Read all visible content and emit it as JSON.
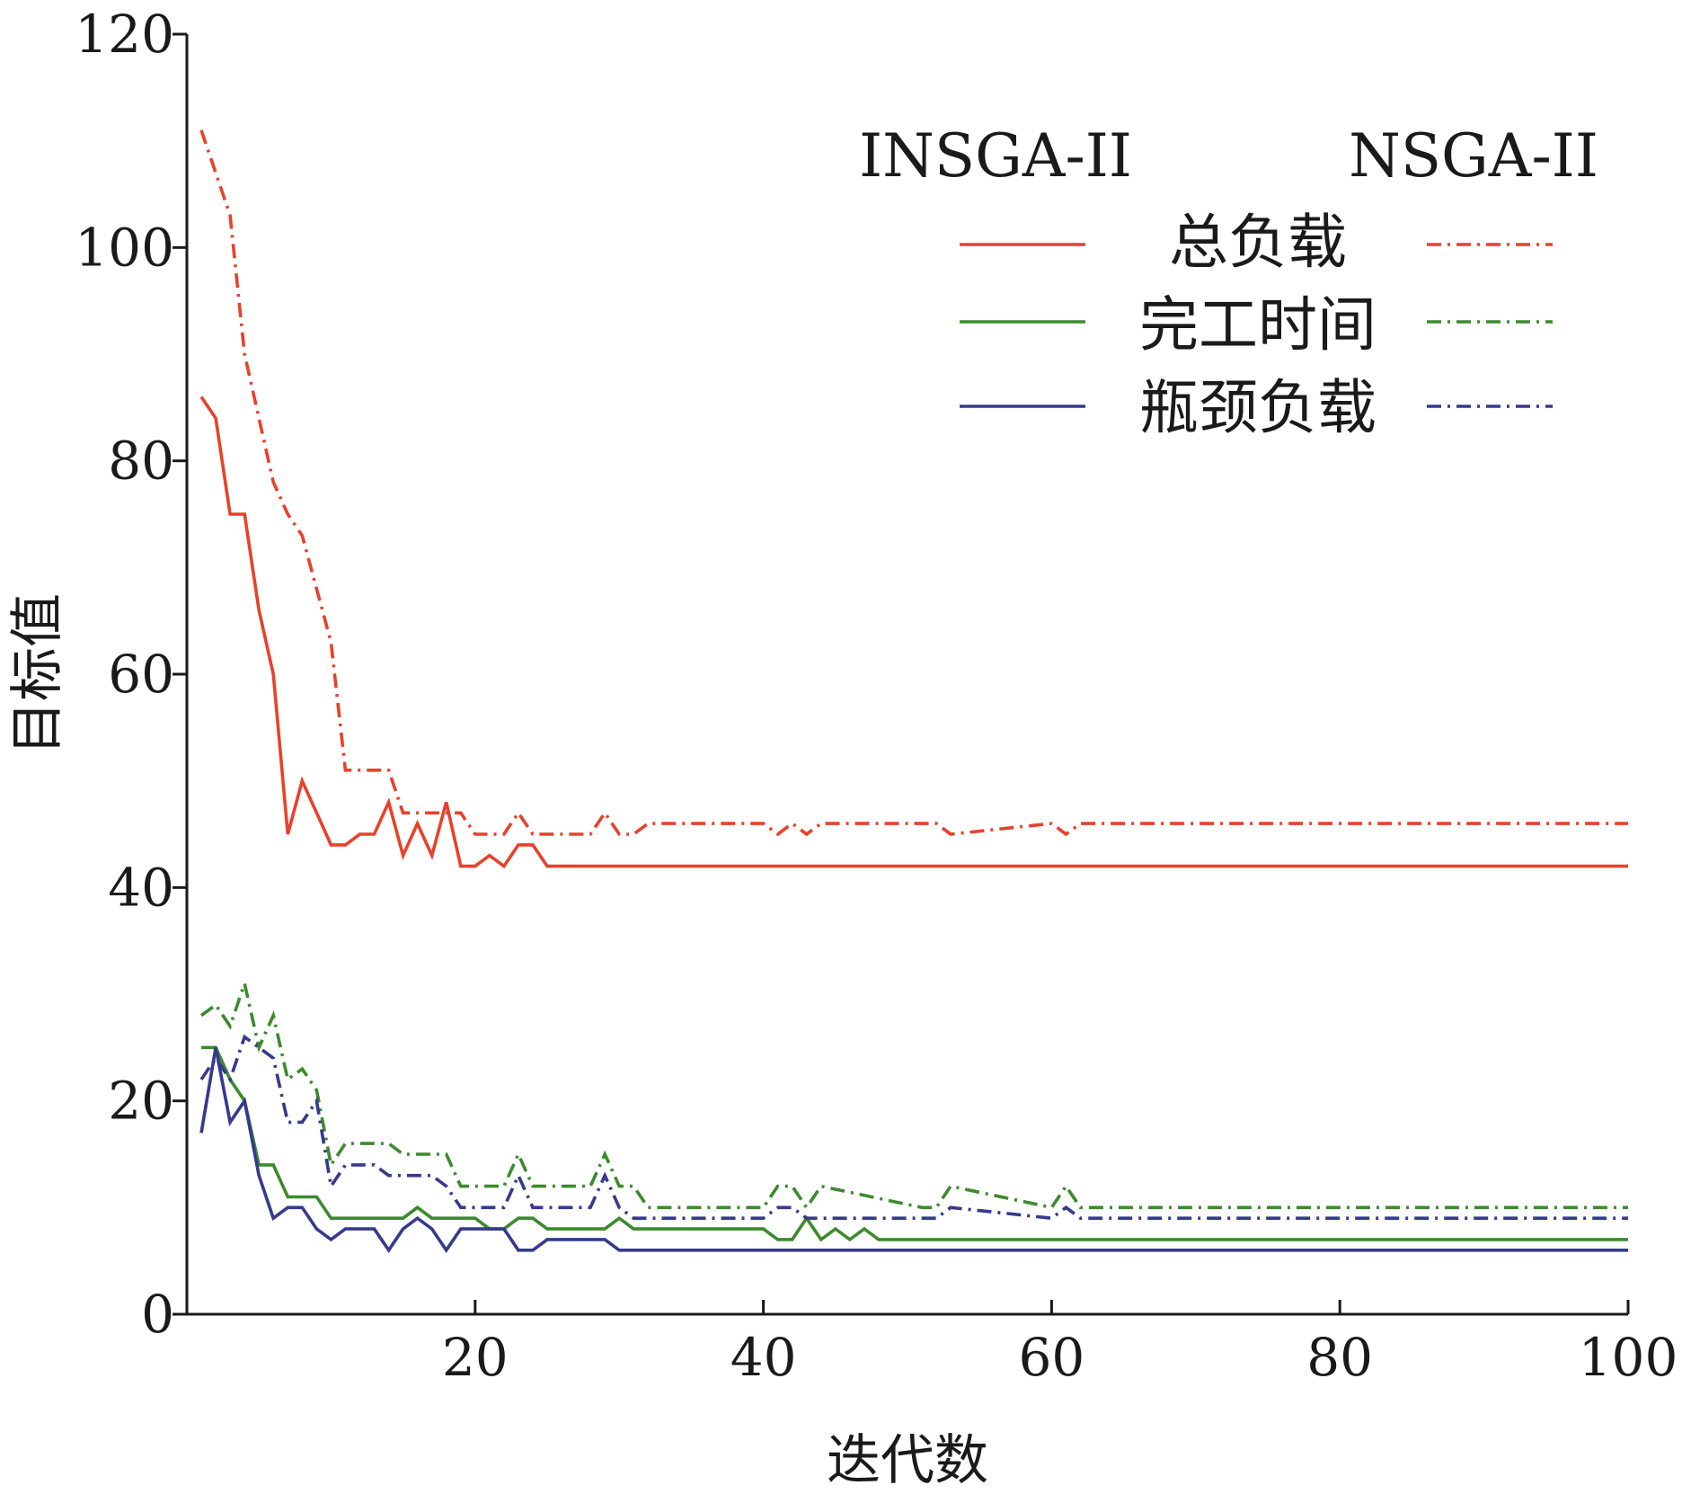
{
  "chart_data": {
    "type": "line",
    "xlabel": "迭代数",
    "ylabel": "目标值",
    "xlim": [
      0,
      100
    ],
    "ylim": [
      0,
      120
    ],
    "xticks": [
      20,
      40,
      60,
      80,
      100
    ],
    "yticks": [
      0,
      20,
      40,
      60,
      80,
      100,
      120
    ],
    "grid": false,
    "legend": {
      "placement": "top-right",
      "column_headers": [
        "INSGA-II",
        "NSGA-II"
      ],
      "rows": [
        "总负载",
        "完工时间",
        "瓶颈负载"
      ]
    },
    "series": [
      {
        "algorithm": "INSGA-II",
        "metric": "总负载",
        "color": "#e8412c",
        "style": "solid",
        "x": [
          1,
          2,
          3,
          4,
          5,
          6,
          7,
          8,
          9,
          10,
          11,
          12,
          13,
          14,
          15,
          16,
          17,
          18,
          19,
          20,
          21,
          22,
          23,
          24,
          25,
          100
        ],
        "y": [
          86,
          84,
          75,
          75,
          66,
          60,
          45,
          50,
          47,
          44,
          44,
          45,
          45,
          48,
          43,
          46,
          43,
          48,
          42,
          42,
          43,
          42,
          44,
          44,
          42,
          42
        ]
      },
      {
        "algorithm": "NSGA-II",
        "metric": "总负载",
        "color": "#e8412c",
        "style": "dashdot",
        "x": [
          1,
          2,
          3,
          4,
          5,
          6,
          7,
          8,
          9,
          10,
          11,
          12,
          13,
          14,
          15,
          16,
          17,
          18,
          19,
          20,
          21,
          22,
          23,
          24,
          25,
          26,
          27,
          28,
          29,
          30,
          31,
          32,
          33,
          40,
          41,
          42,
          43,
          44,
          52,
          53,
          60,
          61,
          62,
          100
        ],
        "y": [
          111,
          107,
          103,
          90,
          84,
          78,
          75,
          73,
          68,
          63,
          51,
          51,
          51,
          51,
          47,
          47,
          47,
          47,
          47,
          45,
          45,
          45,
          47,
          45,
          45,
          45,
          45,
          45,
          47,
          45,
          45,
          46,
          46,
          46,
          45,
          46,
          45,
          46,
          46,
          45,
          46,
          45,
          46,
          46
        ]
      },
      {
        "algorithm": "INSGA-II",
        "metric": "完工时间",
        "color": "#3d8a2e",
        "style": "solid",
        "x": [
          1,
          2,
          3,
          4,
          5,
          6,
          7,
          8,
          9,
          10,
          11,
          12,
          13,
          14,
          15,
          16,
          17,
          18,
          19,
          20,
          21,
          22,
          23,
          24,
          25,
          26,
          27,
          28,
          29,
          30,
          31,
          32,
          40,
          41,
          42,
          43,
          44,
          45,
          46,
          47,
          48,
          100
        ],
        "y": [
          25,
          25,
          22,
          20,
          14,
          14,
          11,
          11,
          11,
          9,
          9,
          9,
          9,
          9,
          9,
          10,
          9,
          9,
          9,
          9,
          8,
          8,
          9,
          9,
          8,
          8,
          8,
          8,
          8,
          9,
          8,
          8,
          8,
          7,
          7,
          9,
          7,
          8,
          7,
          8,
          7,
          7
        ]
      },
      {
        "algorithm": "NSGA-II",
        "metric": "完工时间",
        "color": "#3d8a2e",
        "style": "dashdot",
        "x": [
          1,
          2,
          3,
          4,
          5,
          6,
          7,
          8,
          9,
          10,
          11,
          12,
          13,
          14,
          15,
          16,
          17,
          18,
          19,
          20,
          21,
          22,
          23,
          24,
          25,
          26,
          27,
          28,
          29,
          30,
          31,
          32,
          40,
          41,
          42,
          43,
          44,
          51,
          52,
          53,
          60,
          61,
          62,
          100
        ],
        "y": [
          28,
          29,
          27,
          31,
          25,
          28,
          22,
          23,
          21,
          14,
          16,
          16,
          16,
          16,
          15,
          15,
          15,
          15,
          12,
          12,
          12,
          12,
          15,
          12,
          12,
          12,
          12,
          12,
          15,
          12,
          12,
          10,
          10,
          12,
          12,
          10,
          12,
          10,
          10,
          12,
          10,
          12,
          10,
          10
        ]
      },
      {
        "algorithm": "INSGA-II",
        "metric": "瓶颈负载",
        "color": "#353a8c",
        "style": "solid",
        "x": [
          1,
          2,
          3,
          4,
          5,
          6,
          7,
          8,
          9,
          10,
          11,
          12,
          13,
          14,
          15,
          16,
          17,
          18,
          19,
          20,
          21,
          22,
          23,
          24,
          25,
          26,
          27,
          28,
          29,
          30,
          100
        ],
        "y": [
          17,
          25,
          18,
          20,
          13,
          9,
          10,
          10,
          8,
          7,
          8,
          8,
          8,
          6,
          8,
          9,
          8,
          6,
          8,
          8,
          8,
          8,
          6,
          6,
          7,
          7,
          7,
          7,
          7,
          6,
          6
        ]
      },
      {
        "algorithm": "NSGA-II",
        "metric": "瓶颈负载",
        "color": "#353a8c",
        "style": "dashdot",
        "x": [
          1,
          2,
          3,
          4,
          5,
          6,
          7,
          8,
          9,
          10,
          11,
          12,
          13,
          14,
          15,
          16,
          17,
          18,
          19,
          20,
          21,
          22,
          23,
          24,
          25,
          26,
          27,
          28,
          29,
          30,
          31,
          32,
          40,
          41,
          42,
          43,
          44,
          52,
          53,
          60,
          61,
          62,
          100
        ],
        "y": [
          22,
          24,
          22,
          26,
          25,
          24,
          18,
          18,
          20,
          12,
          14,
          14,
          14,
          13,
          13,
          13,
          13,
          12,
          10,
          10,
          10,
          10,
          13,
          10,
          10,
          10,
          10,
          10,
          13,
          10,
          9,
          9,
          9,
          10,
          10,
          9,
          9,
          9,
          10,
          9,
          10,
          9,
          9
        ]
      }
    ]
  }
}
